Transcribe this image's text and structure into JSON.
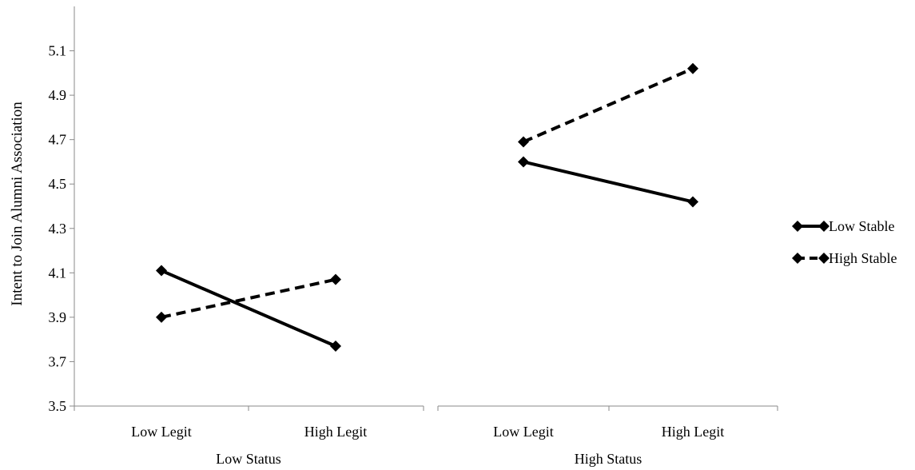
{
  "chart_data": {
    "type": "line",
    "ylabel": "Intent to Join Alumni Association",
    "ylim": [
      3.5,
      5.3
    ],
    "yticks": [
      3.5,
      3.7,
      3.9,
      4.1,
      4.3,
      4.5,
      4.7,
      4.9,
      5.1
    ],
    "ytick_labels": [
      "3.5",
      "3.7",
      "3.9",
      "4.1",
      "4.3",
      "4.5",
      "4.7",
      "4.9",
      "5.1"
    ],
    "grid": false,
    "legend_placement": "right",
    "groups": [
      {
        "label": "Low Status",
        "categories": [
          "Low Legit",
          "High Legit"
        ]
      },
      {
        "label": "High Status",
        "categories": [
          "Low Legit",
          "High Legit"
        ]
      }
    ],
    "series": [
      {
        "name": "Low Stable",
        "style": "solid",
        "color": "#000000",
        "marker": "diamond",
        "values": [
          [
            4.11,
            3.77
          ],
          [
            4.6,
            4.42
          ]
        ]
      },
      {
        "name": "High Stable",
        "style": "dashed",
        "color": "#000000",
        "marker": "diamond",
        "values": [
          [
            3.9,
            4.07
          ],
          [
            4.69,
            5.02
          ]
        ]
      }
    ]
  }
}
